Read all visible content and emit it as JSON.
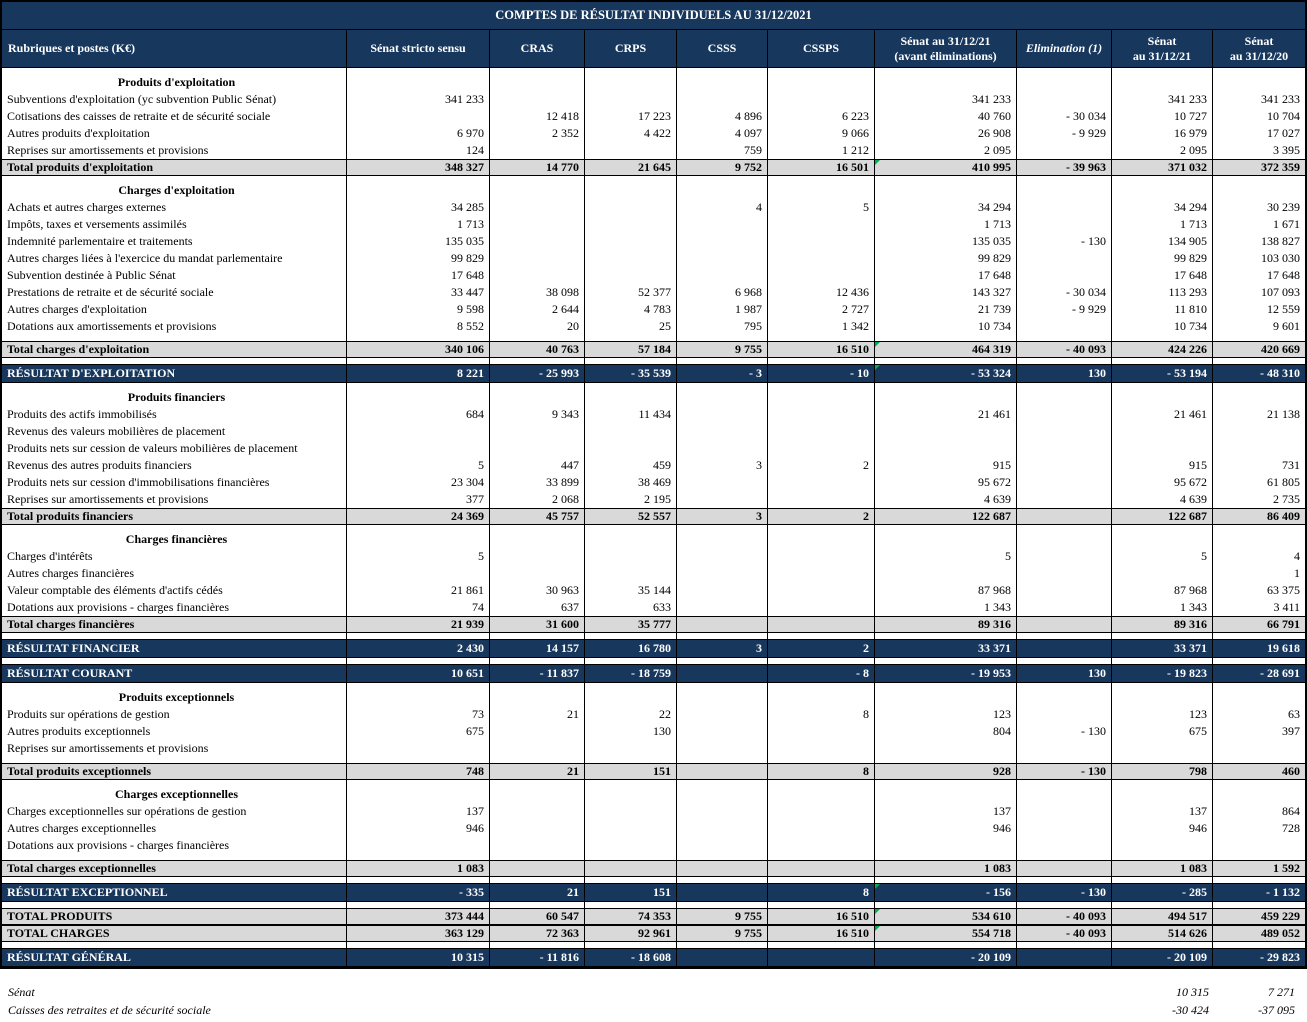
{
  "table": {
    "title": "COMPTES DE RÉSULTAT INDIVIDUELS AU 31/12/2021",
    "columns": [
      {
        "label": "Rubriques et postes (K€)"
      },
      {
        "label": "Sénat stricto sensu"
      },
      {
        "label": "CRAS"
      },
      {
        "label": "CRPS"
      },
      {
        "label": "CSSS"
      },
      {
        "label": "CSSPS"
      },
      {
        "label": "Sénat au 31/12/21",
        "label2": "(avant éliminations)"
      },
      {
        "label": "Elimination",
        "note": "(1)",
        "italic": true
      },
      {
        "label": "Sénat",
        "label2": "au 31/12/21"
      },
      {
        "label": "Sénat",
        "label2": "au 31/12/20"
      }
    ],
    "rows": [
      {
        "type": "section",
        "label": "Produits d'exploitation"
      },
      {
        "type": "item",
        "label": "Subventions d'exploitation (yc subvention Public Sénat)",
        "values": [
          "341 233",
          "",
          "",
          "",
          "",
          "341 233",
          "",
          "341 233",
          "341 233"
        ]
      },
      {
        "type": "item",
        "label": "Cotisations des caisses de retraite et de sécurité sociale",
        "values": [
          "",
          "12 418",
          "17 223",
          "4 896",
          "6 223",
          "40 760",
          "- 30 034",
          "10 727",
          "10 704"
        ]
      },
      {
        "type": "item",
        "label": "Autres produits d'exploitation",
        "values": [
          "6 970",
          "2 352",
          "4 422",
          "4 097",
          "9 066",
          "26 908",
          "- 9 929",
          "16 979",
          "17 027"
        ]
      },
      {
        "type": "item",
        "label": "Reprises sur amortissements et provisions",
        "values": [
          "124",
          "",
          "",
          "759",
          "1 212",
          "2 095",
          "",
          "2 095",
          "3 395"
        ]
      },
      {
        "type": "total",
        "label": "Total produits d'exploitation",
        "marker": true,
        "values": [
          "348 327",
          "14 770",
          "21 645",
          "9 752",
          "16 501",
          "410 995",
          "- 39 963",
          "371 032",
          "372 359"
        ]
      },
      {
        "type": "section",
        "label": "Charges d'exploitation"
      },
      {
        "type": "item",
        "label": "Achats et autres charges externes",
        "values": [
          "34 285",
          "",
          "",
          "4",
          "5",
          "34 294",
          "",
          "34 294",
          "30 239"
        ]
      },
      {
        "type": "item",
        "label": "Impôts, taxes et versements assimilés",
        "values": [
          "1 713",
          "",
          "",
          "",
          "",
          "1 713",
          "",
          "1 713",
          "1 671"
        ]
      },
      {
        "type": "item",
        "label": "Indemnité parlementaire et traitements",
        "values": [
          "135 035",
          "",
          "",
          "",
          "",
          "135 035",
          "- 130",
          "134 905",
          "138 827"
        ]
      },
      {
        "type": "item",
        "label": "Autres charges liées à l'exercice du mandat parlementaire",
        "values": [
          "99 829",
          "",
          "",
          "",
          "",
          "99 829",
          "",
          "99 829",
          "103 030"
        ]
      },
      {
        "type": "item",
        "label": "Subvention destinée à Public Sénat",
        "values": [
          "17 648",
          "",
          "",
          "",
          "",
          "17 648",
          "",
          "17 648",
          "17 648"
        ]
      },
      {
        "type": "item",
        "label": "Prestations de retraite et de sécurité sociale",
        "values": [
          "33 447",
          "38 098",
          "52 377",
          "6 968",
          "12 436",
          "143 327",
          "- 30 034",
          "113 293",
          "107 093"
        ]
      },
      {
        "type": "item",
        "label": "Autres charges d'exploitation",
        "values": [
          "9 598",
          "2 644",
          "4 783",
          "1 987",
          "2 727",
          "21 739",
          "- 9 929",
          "11 810",
          "12 559"
        ]
      },
      {
        "type": "item",
        "label": "Dotations aux amortissements et provisions",
        "values": [
          "8 552",
          "20",
          "25",
          "795",
          "1 342",
          "10 734",
          "",
          "10 734",
          "9 601"
        ]
      },
      {
        "type": "spacer"
      },
      {
        "type": "total",
        "label": "Total charges d'exploitation",
        "marker": true,
        "values": [
          "340 106",
          "40 763",
          "57 184",
          "9 755",
          "16 510",
          "464 319",
          "- 40 093",
          "424 226",
          "420 669"
        ]
      },
      {
        "type": "spacer"
      },
      {
        "type": "result",
        "label": "RÉSULTAT D'EXPLOITATION",
        "marker": true,
        "values": [
          "8 221",
          "- 25 993",
          "- 35 539",
          "- 3",
          "- 10",
          "- 53 324",
          "130",
          "- 53 194",
          "- 48 310"
        ]
      },
      {
        "type": "section",
        "label": "Produits financiers"
      },
      {
        "type": "item",
        "label": "Produits des actifs immobilisés",
        "values": [
          "684",
          "9 343",
          "11 434",
          "",
          "",
          "21 461",
          "",
          "21 461",
          "21 138"
        ]
      },
      {
        "type": "item",
        "label": "Revenus des valeurs mobilières de placement",
        "values": [
          "",
          "",
          "",
          "",
          "",
          "",
          "",
          "",
          ""
        ]
      },
      {
        "type": "item",
        "label": "Produits nets sur cession de valeurs mobilières de placement",
        "values": [
          "",
          "",
          "",
          "",
          "",
          "",
          "",
          "",
          ""
        ]
      },
      {
        "type": "item",
        "label": "Revenus des autres produits financiers",
        "values": [
          "5",
          "447",
          "459",
          "3",
          "2",
          "915",
          "",
          "915",
          "731"
        ]
      },
      {
        "type": "item",
        "label": "Produits nets sur cession d'immobilisations financières",
        "values": [
          "23 304",
          "33 899",
          "38 469",
          "",
          "",
          "95 672",
          "",
          "95 672",
          "61 805"
        ]
      },
      {
        "type": "item",
        "label": "Reprises sur amortissements et provisions",
        "values": [
          "377",
          "2 068",
          "2 195",
          "",
          "",
          "4 639",
          "",
          "4 639",
          "2 735"
        ]
      },
      {
        "type": "total",
        "label": "Total produits financiers",
        "values": [
          "24 369",
          "45 757",
          "52 557",
          "3",
          "2",
          "122 687",
          "",
          "122 687",
          "86 409"
        ]
      },
      {
        "type": "section",
        "label": "Charges financières"
      },
      {
        "type": "item",
        "label": "Charges d'intérêts",
        "values": [
          "5",
          "",
          "",
          "",
          "",
          "5",
          "",
          "5",
          "4"
        ]
      },
      {
        "type": "item",
        "label": "Autres charges financières",
        "values": [
          "",
          "",
          "",
          "",
          "",
          "",
          "",
          "",
          "1"
        ]
      },
      {
        "type": "item",
        "label": "Valeur comptable des éléments d'actifs cédés",
        "values": [
          "21 861",
          "30 963",
          "35 144",
          "",
          "",
          "87 968",
          "",
          "87 968",
          "63 375"
        ]
      },
      {
        "type": "item",
        "label": "Dotations aux  provisions - charges financières",
        "values": [
          "74",
          "637",
          "633",
          "",
          "",
          "1 343",
          "",
          "1 343",
          "3 411"
        ]
      },
      {
        "type": "total",
        "label": "Total charges financières",
        "values": [
          "21 939",
          "31 600",
          "35 777",
          "",
          "",
          "89 316",
          "",
          "89 316",
          "66 791"
        ]
      },
      {
        "type": "spacer"
      },
      {
        "type": "result",
        "label": "RÉSULTAT FINANCIER",
        "values": [
          "2 430",
          "14 157",
          "16 780",
          "3",
          "2",
          "33 371",
          "",
          "33 371",
          "19 618"
        ]
      },
      {
        "type": "spacer"
      },
      {
        "type": "result",
        "label": "RÉSULTAT COURANT",
        "values": [
          "10 651",
          "- 11 837",
          "- 18 759",
          "",
          "- 8",
          "- 19 953",
          "130",
          "- 19 823",
          "- 28 691"
        ]
      },
      {
        "type": "section",
        "label": "Produits exceptionnels"
      },
      {
        "type": "item",
        "label": "Produits sur opérations de gestion",
        "values": [
          "73",
          "21",
          "22",
          "",
          "8",
          "123",
          "",
          "123",
          "63"
        ]
      },
      {
        "type": "item",
        "label": "Autres produits exceptionnels",
        "values": [
          "675",
          "",
          "130",
          "",
          "",
          "804",
          "- 130",
          "675",
          "397"
        ]
      },
      {
        "type": "item",
        "label": "Reprises sur amortissements et provisions",
        "values": [
          "",
          "",
          "",
          "",
          "",
          "",
          "",
          "",
          ""
        ]
      },
      {
        "type": "spacer"
      },
      {
        "type": "total",
        "label": "Total produits exceptionnels",
        "values": [
          "748",
          "21",
          "151",
          "",
          "8",
          "928",
          "- 130",
          "798",
          "460"
        ]
      },
      {
        "type": "section",
        "label": "Charges exceptionnelles"
      },
      {
        "type": "item",
        "label": "Charges exceptionnelles sur opérations de gestion",
        "values": [
          "137",
          "",
          "",
          "",
          "",
          "137",
          "",
          "137",
          "864"
        ]
      },
      {
        "type": "item",
        "label": "Autres charges exceptionnelles",
        "values": [
          "946",
          "",
          "",
          "",
          "",
          "946",
          "",
          "946",
          "728"
        ]
      },
      {
        "type": "item",
        "label": "Dotations aux  provisions - charges financières",
        "values": [
          "",
          "",
          "",
          "",
          "",
          "",
          "",
          "",
          ""
        ]
      },
      {
        "type": "spacer"
      },
      {
        "type": "total",
        "label": "Total charges exceptionnelles",
        "values": [
          "1 083",
          "",
          "",
          "",
          "",
          "1 083",
          "",
          "1 083",
          "1 592"
        ]
      },
      {
        "type": "spacer"
      },
      {
        "type": "result",
        "label": "RÉSULTAT EXCEPTIONNEL",
        "marker": true,
        "values": [
          "- 335",
          "21",
          "151",
          "",
          "8",
          "- 156",
          "- 130",
          "- 285",
          "- 1 132"
        ]
      },
      {
        "type": "spacer"
      },
      {
        "type": "total",
        "label": "TOTAL PRODUITS",
        "marker": true,
        "values": [
          "373 444",
          "60 547",
          "74 353",
          "9 755",
          "16 510",
          "534 610",
          "- 40 093",
          "494 517",
          "459 229"
        ]
      },
      {
        "type": "total",
        "label": "TOTAL CHARGES",
        "marker": true,
        "values": [
          "363 129",
          "72 363",
          "92 961",
          "9 755",
          "16 510",
          "554 718",
          "- 40 093",
          "514 626",
          "489 052"
        ]
      },
      {
        "type": "spacer"
      },
      {
        "type": "result",
        "label": "RÉSULTAT GÉNÉRAL",
        "values": [
          "10 315",
          "- 11 816",
          "- 18 608",
          "",
          "",
          "- 20 109",
          "",
          "- 20 109",
          "- 29 823"
        ]
      }
    ]
  },
  "footnotes": [
    {
      "label": "Sénat",
      "v2021": "10 315",
      "v2020": "7 271"
    },
    {
      "label": "Caisses des retraites et de sécurité sociale",
      "v2021": "-30 424",
      "v2020": "-37 095"
    }
  ],
  "colors": {
    "header_navy": "#17375D",
    "total_row_gray": "#D9D9D9",
    "marker_green": "#00B050",
    "border_black": "#000000"
  }
}
